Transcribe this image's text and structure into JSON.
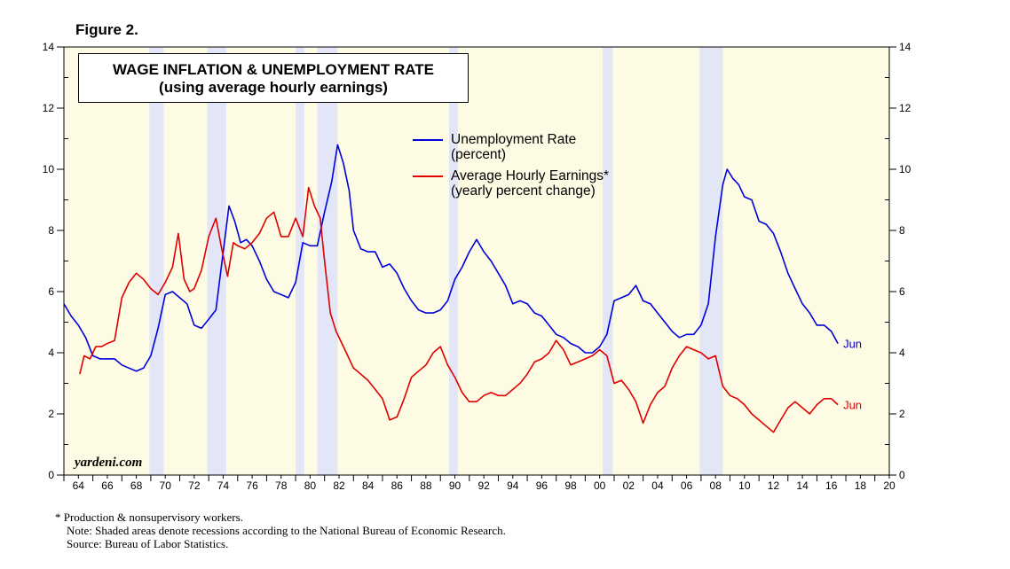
{
  "figure_label": "Figure 2.",
  "watermark": "yardeni.com",
  "footnotes": [
    "*  Production & nonsupervisory workers.",
    "Note: Shaded areas denote recessions according to the National Bureau of Economic Research.",
    "Source: Bureau of Labor Statistics."
  ],
  "colors": {
    "plot_bg": "#fdfbe3",
    "recession": "#e3e6f7",
    "unemployment": "#0000dd",
    "earnings": "#e00000",
    "axis": "#000000"
  },
  "chart_data": {
    "type": "line",
    "title": "WAGE INFLATION & UNEMPLOYMENT RATE",
    "subtitle": "(using average hourly earnings)",
    "xlabel": "",
    "ylabel": "",
    "xlim": [
      1964,
      2021
    ],
    "ylim": [
      0,
      14
    ],
    "yticks": [
      0,
      2,
      4,
      6,
      8,
      10,
      12,
      14
    ],
    "xtick_labels": [
      "64",
      "66",
      "68",
      "70",
      "72",
      "74",
      "76",
      "78",
      "80",
      "82",
      "84",
      "86",
      "88",
      "90",
      "92",
      "94",
      "96",
      "98",
      "00",
      "02",
      "04",
      "06",
      "08",
      "10",
      "12",
      "14",
      "16",
      "18",
      "20"
    ],
    "recessions": [
      [
        1969.9,
        1970.9
      ],
      [
        1973.9,
        1975.2
      ],
      [
        1980.0,
        1980.6
      ],
      [
        1981.5,
        1982.9
      ],
      [
        1990.6,
        1991.2
      ],
      [
        2001.2,
        2001.9
      ],
      [
        2007.9,
        2009.5
      ]
    ],
    "legend": [
      "Unemployment Rate",
      "(percent)",
      "Average Hourly Earnings*",
      "(yearly percent change)"
    ],
    "series": [
      {
        "name": "Unemployment Rate (percent)",
        "end_label": "Jun",
        "x": [
          1964.0,
          1964.5,
          1965.0,
          1965.5,
          1966.0,
          1966.5,
          1967.0,
          1967.5,
          1968.0,
          1968.5,
          1969.0,
          1969.5,
          1970.0,
          1970.5,
          1971.0,
          1971.5,
          1972.0,
          1972.5,
          1973.0,
          1973.5,
          1974.0,
          1974.5,
          1975.0,
          1975.4,
          1975.8,
          1976.2,
          1976.6,
          1977.0,
          1977.5,
          1978.0,
          1978.5,
          1979.0,
          1979.5,
          1980.0,
          1980.5,
          1981.0,
          1981.5,
          1982.0,
          1982.5,
          1982.9,
          1983.3,
          1983.7,
          1984.0,
          1984.5,
          1985.0,
          1985.5,
          1986.0,
          1986.5,
          1987.0,
          1987.5,
          1988.0,
          1988.5,
          1989.0,
          1989.5,
          1990.0,
          1990.5,
          1991.0,
          1991.5,
          1992.0,
          1992.5,
          1993.0,
          1993.5,
          1994.0,
          1994.5,
          1995.0,
          1995.5,
          1996.0,
          1996.5,
          1997.0,
          1997.5,
          1998.0,
          1998.5,
          1999.0,
          1999.5,
          2000.0,
          2000.5,
          2001.0,
          2001.5,
          2002.0,
          2002.5,
          2003.0,
          2003.5,
          2004.0,
          2004.5,
          2005.0,
          2005.5,
          2006.0,
          2006.5,
          2007.0,
          2007.5,
          2008.0,
          2008.5,
          2009.0,
          2009.5,
          2009.8,
          2010.2,
          2010.6,
          2011.0,
          2011.5,
          2012.0,
          2012.5,
          2013.0,
          2013.5,
          2014.0,
          2014.5,
          2015.0,
          2015.5,
          2016.0,
          2016.5,
          2017.0,
          2017.45
        ],
        "values": [
          5.6,
          5.2,
          4.9,
          4.5,
          3.9,
          3.8,
          3.8,
          3.8,
          3.6,
          3.5,
          3.4,
          3.5,
          3.9,
          4.8,
          5.9,
          6.0,
          5.8,
          5.6,
          4.9,
          4.8,
          5.1,
          5.4,
          7.3,
          8.8,
          8.3,
          7.6,
          7.7,
          7.5,
          7.0,
          6.4,
          6.0,
          5.9,
          5.8,
          6.3,
          7.6,
          7.5,
          7.5,
          8.6,
          9.6,
          10.8,
          10.2,
          9.3,
          8.0,
          7.4,
          7.3,
          7.3,
          6.8,
          6.9,
          6.6,
          6.1,
          5.7,
          5.4,
          5.3,
          5.3,
          5.4,
          5.7,
          6.4,
          6.8,
          7.3,
          7.7,
          7.3,
          7.0,
          6.6,
          6.2,
          5.6,
          5.7,
          5.6,
          5.3,
          5.2,
          4.9,
          4.6,
          4.5,
          4.3,
          4.2,
          4.0,
          4.0,
          4.2,
          4.6,
          5.7,
          5.8,
          5.9,
          6.2,
          5.7,
          5.6,
          5.3,
          5.0,
          4.7,
          4.5,
          4.6,
          4.6,
          4.9,
          5.6,
          7.8,
          9.5,
          10.0,
          9.7,
          9.5,
          9.1,
          9.0,
          8.3,
          8.2,
          7.9,
          7.3,
          6.6,
          6.1,
          5.6,
          5.3,
          4.9,
          4.9,
          4.7,
          4.3
        ]
      },
      {
        "name": "Average Hourly Earnings* (yearly percent change)",
        "end_label": "Jun",
        "x": [
          1965.1,
          1965.4,
          1965.8,
          1966.2,
          1966.6,
          1967.0,
          1967.5,
          1968.0,
          1968.5,
          1969.0,
          1969.5,
          1970.0,
          1970.5,
          1971.0,
          1971.5,
          1971.9,
          1972.3,
          1972.7,
          1973.0,
          1973.5,
          1974.0,
          1974.5,
          1974.9,
          1975.3,
          1975.7,
          1976.0,
          1976.5,
          1977.0,
          1977.5,
          1978.0,
          1978.5,
          1979.0,
          1979.5,
          1980.0,
          1980.5,
          1980.9,
          1981.3,
          1981.7,
          1982.0,
          1982.4,
          1982.8,
          1983.2,
          1983.6,
          1984.0,
          1984.5,
          1985.0,
          1985.5,
          1986.0,
          1986.5,
          1987.0,
          1987.5,
          1988.0,
          1988.5,
          1989.0,
          1989.5,
          1990.0,
          1990.5,
          1991.0,
          1991.5,
          1992.0,
          1992.5,
          1993.0,
          1993.5,
          1994.0,
          1994.5,
          1995.0,
          1995.5,
          1996.0,
          1996.5,
          1997.0,
          1997.5,
          1998.0,
          1998.5,
          1999.0,
          1999.5,
          2000.0,
          2000.5,
          2001.0,
          2001.5,
          2002.0,
          2002.5,
          2003.0,
          2003.5,
          2004.0,
          2004.5,
          2005.0,
          2005.5,
          2006.0,
          2006.5,
          2007.0,
          2007.5,
          2008.0,
          2008.5,
          2009.0,
          2009.5,
          2010.0,
          2010.5,
          2011.0,
          2011.5,
          2012.0,
          2012.5,
          2013.0,
          2013.5,
          2014.0,
          2014.5,
          2015.0,
          2015.5,
          2016.0,
          2016.5,
          2017.0,
          2017.45
        ],
        "values": [
          3.3,
          3.9,
          3.8,
          4.2,
          4.2,
          4.3,
          4.4,
          5.8,
          6.3,
          6.6,
          6.4,
          6.1,
          5.9,
          6.3,
          6.8,
          7.9,
          6.4,
          6.0,
          6.1,
          6.7,
          7.8,
          8.4,
          7.4,
          6.5,
          7.6,
          7.5,
          7.4,
          7.6,
          7.9,
          8.4,
          8.6,
          7.8,
          7.8,
          8.4,
          7.8,
          9.4,
          8.8,
          8.4,
          7.0,
          5.3,
          4.7,
          4.3,
          3.9,
          3.5,
          3.3,
          3.1,
          2.8,
          2.5,
          1.8,
          1.9,
          2.5,
          3.2,
          3.4,
          3.6,
          4.0,
          4.2,
          3.6,
          3.2,
          2.7,
          2.4,
          2.4,
          2.6,
          2.7,
          2.6,
          2.6,
          2.8,
          3.0,
          3.3,
          3.7,
          3.8,
          4.0,
          4.4,
          4.1,
          3.6,
          3.7,
          3.8,
          3.9,
          4.1,
          3.9,
          3.0,
          3.1,
          2.8,
          2.4,
          1.7,
          2.3,
          2.7,
          2.9,
          3.5,
          3.9,
          4.2,
          4.1,
          4.0,
          3.8,
          3.9,
          2.9,
          2.6,
          2.5,
          2.3,
          2.0,
          1.8,
          1.6,
          1.4,
          1.8,
          2.2,
          2.4,
          2.2,
          2.0,
          2.3,
          2.5,
          2.5,
          2.3
        ]
      }
    ]
  }
}
